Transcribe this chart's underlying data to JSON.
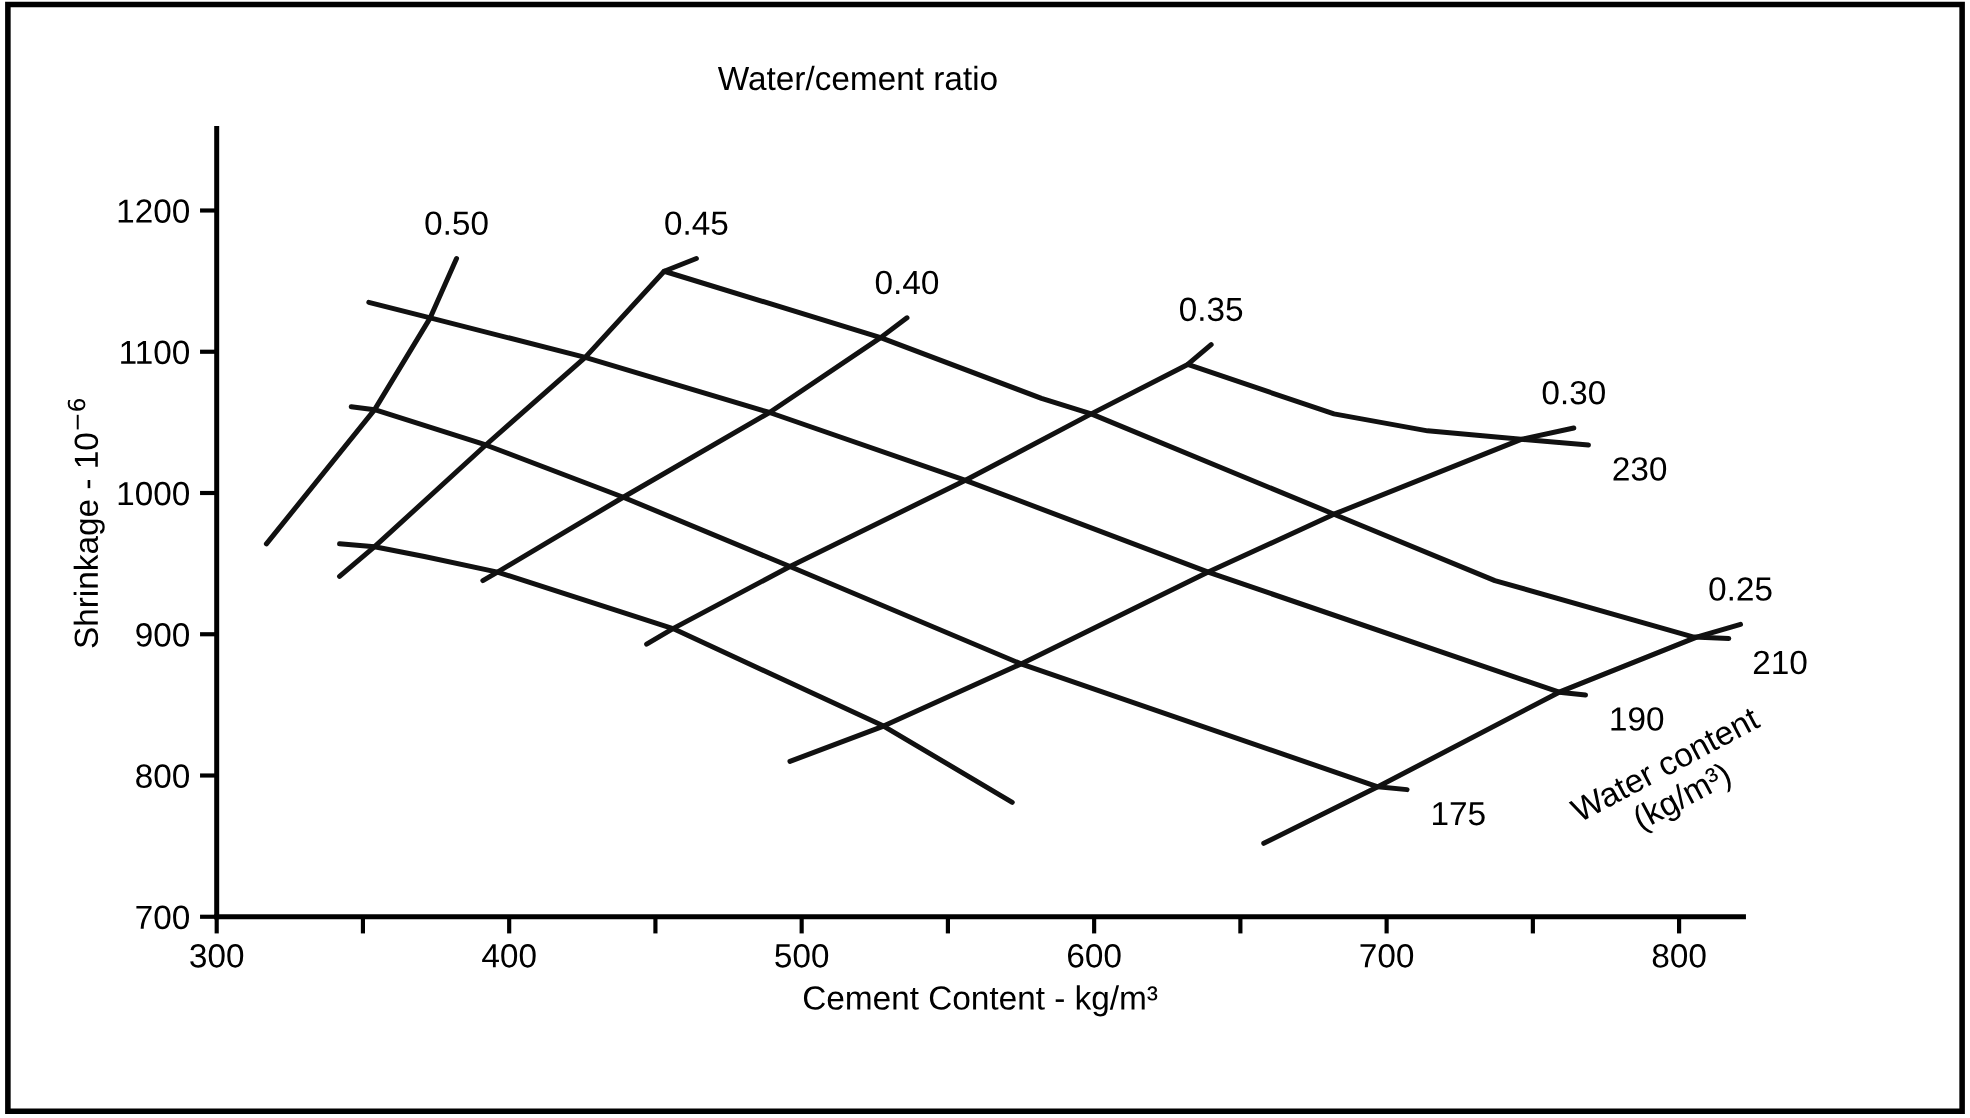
{
  "chart_data": {
    "type": "line",
    "xlabel": "Cement Content - kg/m³",
    "ylabel": "Shrinkage - 10$^{−6}$",
    "xlim": [
      300,
      822
    ],
    "ylim": [
      700,
      1258
    ],
    "xticks": [
      300,
      {
        "value": 350,
        "label": null
      },
      400,
      {
        "value": 450,
        "label": null
      },
      500,
      {
        "value": 550,
        "label": null
      },
      600,
      {
        "value": 650,
        "label": null
      },
      700,
      {
        "value": 750,
        "label": null
      },
      800
    ],
    "yticks": [
      700,
      800,
      900,
      1000,
      1100,
      1200
    ],
    "grid": false,
    "legend": false,
    "marker": "none",
    "line_style": "solid",
    "annotations": [
      "Water/cement ratio",
      "Water content\n(kg/m³)"
    ],
    "series": [
      {
        "name": "0.50",
        "color": "#111111",
        "x": [
          317,
          354,
          373,
          382
        ],
        "values": [
          964,
          1059,
          1124,
          1166
        ]
      },
      {
        "name": "0.45",
        "color": "#111111",
        "x": [
          342,
          354,
          392,
          426,
          453,
          464
        ],
        "values": [
          941,
          962,
          1034,
          1096,
          1157,
          1166
        ]
      },
      {
        "name": "0.40",
        "color": "#111111",
        "x": [
          391,
          396,
          439,
          489,
          527,
          536
        ],
        "values": [
          938,
          944,
          997,
          1057,
          1110,
          1124
        ]
      },
      {
        "name": "0.35",
        "color": "#111111",
        "x": [
          447,
          456,
          496,
          556,
          599,
          632,
          640
        ],
        "values": [
          893,
          904,
          948,
          1009,
          1056,
          1091,
          1105
        ]
      },
      {
        "name": "0.30",
        "color": "#111111",
        "x": [
          496,
          528,
          575,
          639,
          682,
          746,
          764
        ],
        "values": [
          810,
          835,
          879,
          944,
          985,
          1038,
          1046
        ]
      },
      {
        "name": "0.25",
        "color": "#111111",
        "x": [
          658,
          697,
          759,
          806,
          821
        ],
        "values": [
          752,
          792,
          859,
          898,
          907
        ]
      },
      {
        "name": "230",
        "color": "#111111",
        "x": [
          632,
          682,
          714,
          746,
          769
        ],
        "values": [
          1091,
          1056,
          1044,
          1038,
          1034
        ]
      },
      {
        "name": "210",
        "color": "#111111",
        "x": [
          453,
          527,
          582,
          599,
          682,
          737,
          805,
          817
        ],
        "values": [
          1157,
          1110,
          1067,
          1056,
          985,
          938,
          898,
          897
        ]
      },
      {
        "name": "190",
        "color": "#111111",
        "x": [
          352,
          373,
          426,
          489,
          556,
          639,
          759,
          768
        ],
        "values": [
          1135,
          1124,
          1096,
          1057,
          1009,
          944,
          859,
          857
        ]
      },
      {
        "name": "175",
        "color": "#111111",
        "x": [
          346,
          354,
          392,
          439,
          496,
          575,
          697,
          707
        ],
        "values": [
          1061,
          1059,
          1034,
          997,
          948,
          879,
          792,
          790
        ]
      },
      {
        "name": null,
        "color": "#111111",
        "x": [
          342,
          354,
          371,
          396,
          456,
          528,
          572
        ],
        "values": [
          964,
          962,
          955,
          944,
          904,
          835,
          781
        ]
      }
    ]
  }
}
